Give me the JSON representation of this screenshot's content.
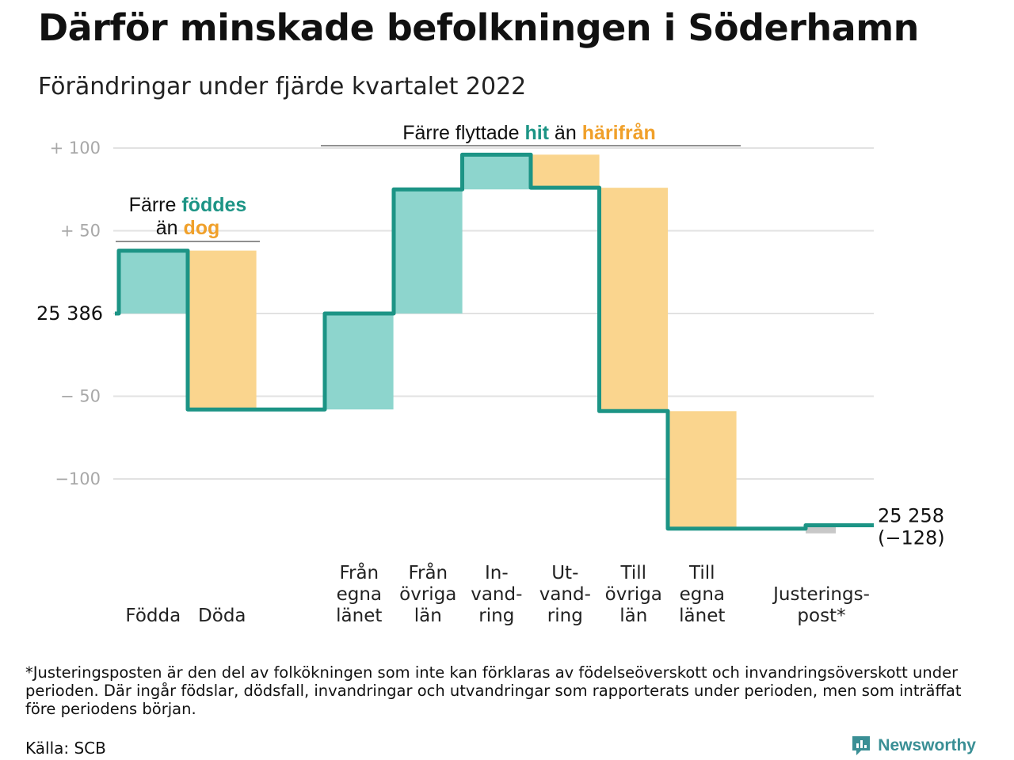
{
  "title": "Därför minskade befolkningen i Söderhamn",
  "subtitle": "Förändringar under fjärde kvartalet 2022",
  "footnote": "*Justeringsposten är den del av folkökningen som inte kan förklaras av födelseöverskott och invandringsöverskott under perioden. Där ingår födslar, dödsfall, invandringar och utvandringar som rapporterats under perioden, men som inträffat före periodens början.",
  "source": "Källa: SCB",
  "brand": "Newsworthy",
  "colors": {
    "increase": "#8dd5cd",
    "decrease": "#fad58e",
    "adjustment": "#c8c8c8",
    "line": "#1c9485",
    "accent_teal": "#1c9485",
    "accent_orange": "#f0a02a",
    "grid": "#e2e2e2"
  },
  "annotations": {
    "births_deaths": {
      "line1_prefix": "Färre ",
      "line1_highlight": "föddes",
      "line2_prefix": "än ",
      "line2_highlight": "dog"
    },
    "migration": {
      "prefix": "Färre flyttade ",
      "highlight1": "hit",
      "middle": " än ",
      "highlight2": "härifrån"
    }
  },
  "chart_data": {
    "type": "waterfall",
    "title": "Därför minskade befolkningen i Söderhamn",
    "subtitle": "Förändringar under fjärde kvartalet 2022",
    "start_value": 25386,
    "start_label": "25 386",
    "end_value": 25258,
    "end_label": "25 258",
    "end_change_label": "(−128)",
    "y_axis": {
      "range": [
        -135,
        105
      ],
      "ticks": [
        {
          "value": 100,
          "label": "+ 100"
        },
        {
          "value": 50,
          "label": "+ 50"
        },
        {
          "value": 0,
          "label": ""
        },
        {
          "value": -50,
          "label": "− 50"
        },
        {
          "value": -100,
          "label": "−100"
        }
      ],
      "grid": true
    },
    "steps": [
      {
        "name": "births",
        "label_lines": [
          "Födda"
        ],
        "change": 38,
        "kind": "increase"
      },
      {
        "name": "deaths",
        "label_lines": [
          "Döda"
        ],
        "change": -96,
        "kind": "decrease"
      },
      {
        "name": "from-own-county",
        "label_lines": [
          "Från",
          "egna",
          "länet"
        ],
        "change": 58,
        "kind": "increase"
      },
      {
        "name": "from-other-counties",
        "label_lines": [
          "Från",
          "övriga",
          "län"
        ],
        "change": 75,
        "kind": "increase"
      },
      {
        "name": "immigration",
        "label_lines": [
          "In-",
          "vand-",
          "ring"
        ],
        "change": 21,
        "kind": "increase"
      },
      {
        "name": "emigration",
        "label_lines": [
          "Ut-",
          "vand-",
          "ring"
        ],
        "change": -20,
        "kind": "decrease"
      },
      {
        "name": "to-other-counties",
        "label_lines": [
          "Till",
          "övriga",
          "län"
        ],
        "change": -135,
        "kind": "decrease"
      },
      {
        "name": "to-own-county",
        "label_lines": [
          "Till",
          "egna",
          "länet"
        ],
        "change": -71,
        "kind": "decrease"
      },
      {
        "name": "adjustment",
        "label_lines": [
          "Justerings-",
          "post*"
        ],
        "change": 2,
        "kind": "adjustment"
      }
    ]
  }
}
